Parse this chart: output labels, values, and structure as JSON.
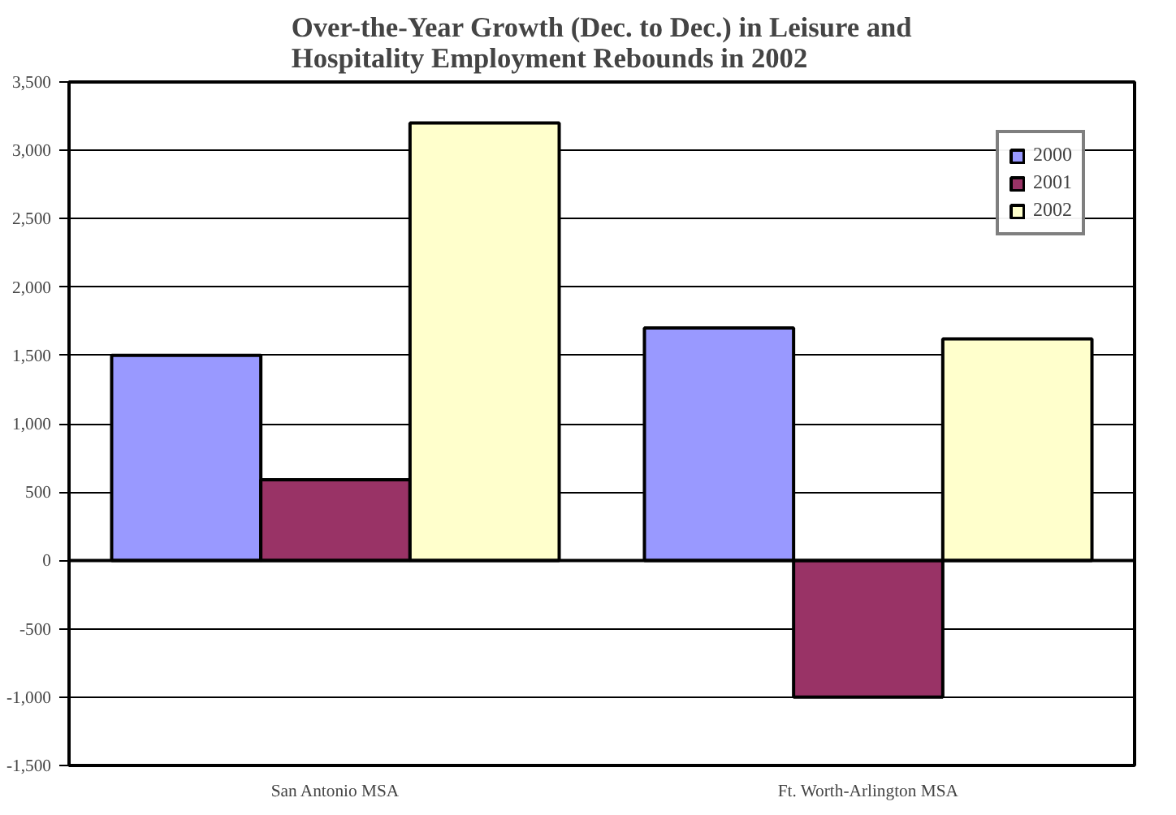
{
  "chart_data": {
    "type": "bar",
    "title": "Over-the-Year Growth (Dec. to Dec.) in Leisure and\nHospitality Employment Rebounds in 2002",
    "categories": [
      "San Antonio MSA",
      "Ft. Worth-Arlington MSA"
    ],
    "series": [
      {
        "name": "2000",
        "color": "#9999ff",
        "values": [
          1500,
          1700
        ]
      },
      {
        "name": "2001",
        "color": "#993366",
        "values": [
          590,
          -1000
        ]
      },
      {
        "name": "2002",
        "color": "#ffffcc",
        "values": [
          3200,
          1620
        ]
      }
    ],
    "ylim": [
      -1500,
      3500
    ],
    "yticks": [
      {
        "value": -1500,
        "label": "-1,500"
      },
      {
        "value": -1000,
        "label": "-1,000"
      },
      {
        "value": -500,
        "label": "-500"
      },
      {
        "value": 0,
        "label": "0"
      },
      {
        "value": 500,
        "label": "500"
      },
      {
        "value": 1000,
        "label": "1,000"
      },
      {
        "value": 1500,
        "label": "1,500"
      },
      {
        "value": 2000,
        "label": "2,000"
      },
      {
        "value": 2500,
        "label": "2,500"
      },
      {
        "value": 3000,
        "label": "3,000"
      },
      {
        "value": 3500,
        "label": "3,500"
      }
    ],
    "grid": "y",
    "legend": "top right"
  }
}
